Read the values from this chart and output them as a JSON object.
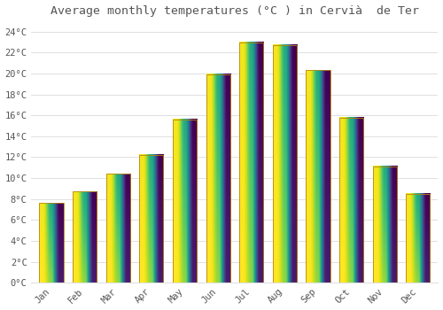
{
  "title": "Average monthly temperatures (°C ) in Cervià  de Ter",
  "months": [
    "Jan",
    "Feb",
    "Mar",
    "Apr",
    "May",
    "Jun",
    "Jul",
    "Aug",
    "Sep",
    "Oct",
    "Nov",
    "Dec"
  ],
  "temperatures": [
    7.6,
    8.7,
    10.4,
    12.2,
    15.6,
    19.9,
    23.0,
    22.7,
    20.3,
    15.8,
    11.1,
    8.5
  ],
  "bar_color_top": "#FDD835",
  "bar_color_bottom": "#F9A825",
  "bar_edge_color": "#B8860B",
  "background_color": "#FFFFFF",
  "grid_color": "#E0E0E0",
  "text_color": "#555555",
  "ylim": [
    0,
    25
  ],
  "yticks": [
    0,
    2,
    4,
    6,
    8,
    10,
    12,
    14,
    16,
    18,
    20,
    22,
    24
  ],
  "title_fontsize": 9.5,
  "tick_fontsize": 7.5,
  "font_family": "monospace",
  "bar_width": 0.72
}
